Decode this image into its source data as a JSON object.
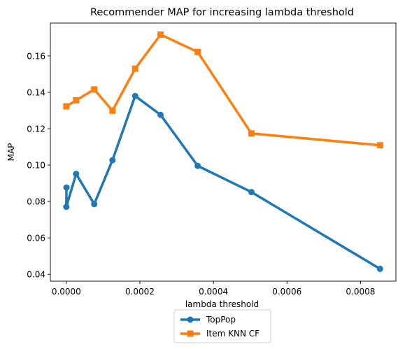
{
  "chart_data": {
    "type": "line",
    "title": "Recommender MAP for increasing lambda threshold",
    "xlabel": "lambda threshold",
    "ylabel": "MAP",
    "xlim": [
      -4.34e-05,
      0.00089626
    ],
    "ylim": [
      0.03624,
      0.17804
    ],
    "xticks": [
      0.0,
      0.0002,
      0.0004,
      0.0006,
      0.0008
    ],
    "xtick_labels": [
      "0.0000",
      "0.0002",
      "0.0004",
      "0.0006",
      "0.0008"
    ],
    "yticks": [
      0.04,
      0.06,
      0.08,
      0.1,
      0.12,
      0.14,
      0.16
    ],
    "ytick_labels": [
      "0.04",
      "0.06",
      "0.08",
      "0.10",
      "0.12",
      "0.14",
      "0.16"
    ],
    "grid": false,
    "legend_position": "below",
    "series": [
      {
        "name": "TopPop",
        "color": "#1f77b4",
        "marker": "circle",
        "x": [
          5e-07,
          0.0,
          2.66e-05,
          7.58e-05,
          0.0001255,
          0.0001872,
          0.0002563,
          0.0003572,
          0.0005033,
          0.0008531
        ],
        "y": [
          0.0877,
          0.0771,
          0.0952,
          0.0786,
          0.1027,
          0.138,
          0.1276,
          0.0996,
          0.0852,
          0.043
        ]
      },
      {
        "name": "Item KNN CF",
        "color": "#ff7f0e",
        "marker": "square",
        "x": [
          0.0,
          2.66e-05,
          7.58e-05,
          0.0001255,
          0.0001872,
          0.0002563,
          0.0003572,
          0.0005033,
          0.0008531
        ],
        "y": [
          0.1323,
          0.1356,
          0.1416,
          0.1299,
          0.153,
          0.1717,
          0.1622,
          0.1174,
          0.1109
        ]
      }
    ]
  }
}
